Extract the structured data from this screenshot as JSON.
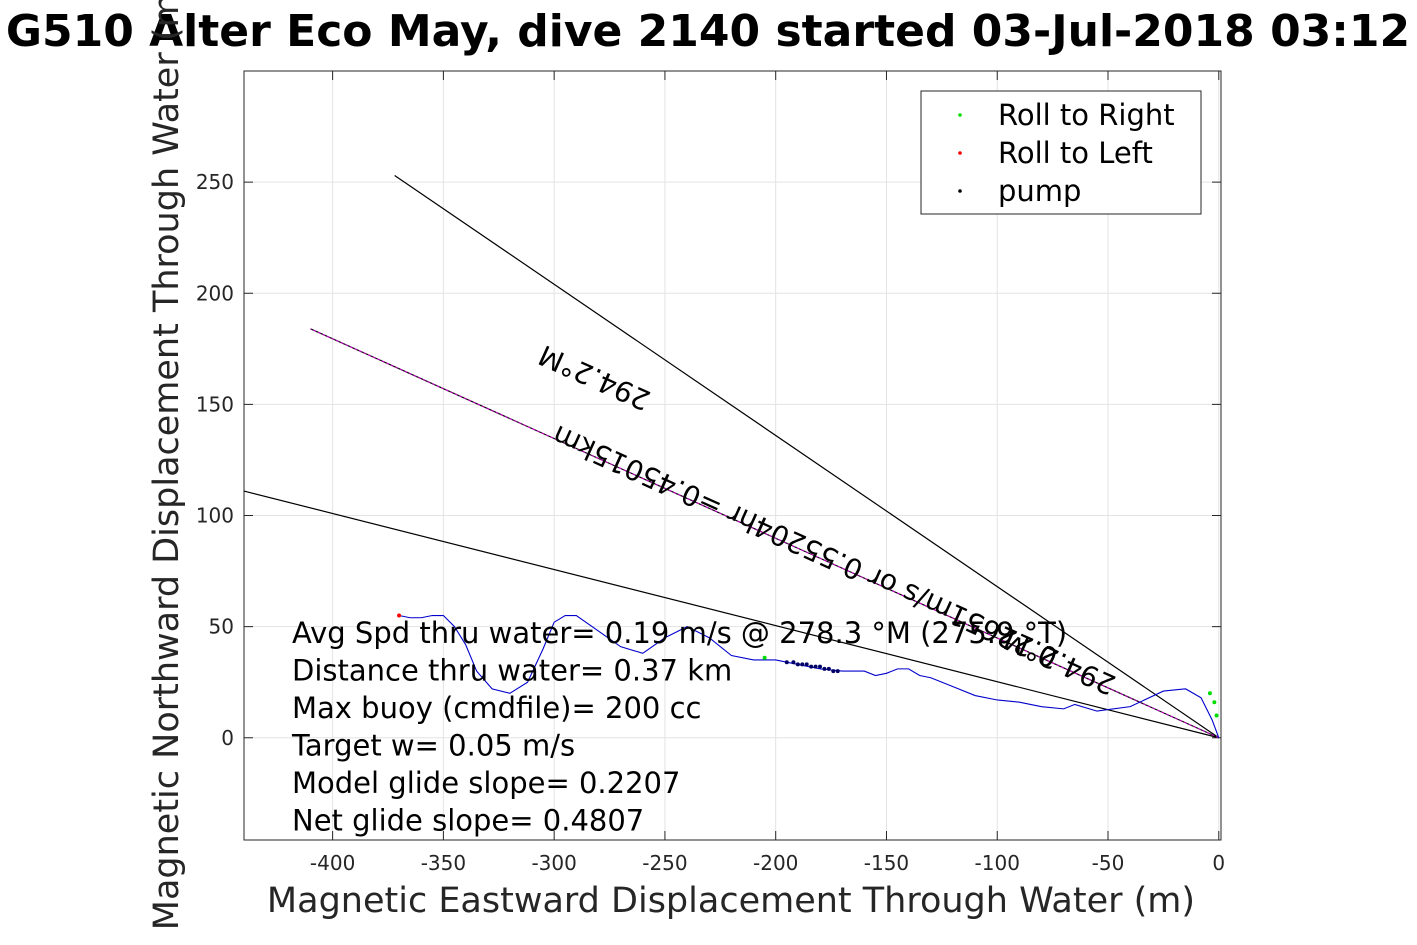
{
  "chart_data": {
    "type": "line",
    "title": "G510 Alter Eco May, dive 2140 started 03-Jul-2018 03:12",
    "xlabel": "Magnetic Eastward Displacement Through Water (m)",
    "ylabel": "Magnetic Northward Displacement Through Water (m)",
    "xlim": [
      -440,
      1
    ],
    "ylim": [
      -46,
      300
    ],
    "xticks": [
      -400,
      -350,
      -300,
      -250,
      -200,
      -150,
      -100,
      -50,
      0
    ],
    "yticks": [
      0,
      50,
      100,
      150,
      200,
      250
    ],
    "grid": true,
    "legend_position": "top-right",
    "legend": [
      {
        "label": "Roll to Right",
        "color": "#00dd00"
      },
      {
        "label": "Roll to Left",
        "color": "#ff0000"
      },
      {
        "label": "pump",
        "color": "#000000"
      }
    ],
    "reference_lines": [
      {
        "name": "heading-line",
        "color": "#000000",
        "x": [
          0,
          -410
        ],
        "y": [
          0,
          184
        ],
        "label": "294.2°M"
      },
      {
        "name": "upper-bound-line",
        "color": "#000000",
        "x": [
          0,
          -372
        ],
        "y": [
          0,
          253
        ]
      },
      {
        "name": "lower-bound-line",
        "color": "#000000",
        "x": [
          0,
          -440
        ],
        "y": [
          0,
          111
        ]
      },
      {
        "name": "avg-line",
        "color": "#cc00cc",
        "x": [
          0,
          -410
        ],
        "y": [
          0,
          184
        ]
      }
    ],
    "line_annotations": [
      {
        "text": "294.2°M",
        "x": -280,
        "y": 166
      },
      {
        "text": "0.22651m/s or 0.55204hr =0.45015km",
        "x": -185,
        "y": 90
      },
      {
        "text": "294.2°M",
        "x": -70,
        "y": 38
      }
    ],
    "track": {
      "color": "#0000cc",
      "x": [
        0,
        -3,
        -8,
        -15,
        -25,
        -40,
        -55,
        -65,
        -70,
        -80,
        -90,
        -100,
        -110,
        -120,
        -130,
        -135,
        -140,
        -145,
        -150,
        -155,
        -160,
        -170,
        -180,
        -190,
        -200,
        -210,
        -220,
        -230,
        -240,
        -250,
        -260,
        -270,
        -280,
        -290,
        -295,
        -300,
        -305,
        -312,
        -320,
        -328,
        -335,
        -340,
        -345,
        -350,
        -355,
        -360,
        -365,
        -370
      ],
      "y": [
        0,
        8,
        18,
        22,
        21,
        14,
        12,
        15,
        13,
        14,
        16,
        17,
        19,
        23,
        27,
        28,
        31,
        31,
        29,
        28,
        30,
        30,
        31,
        33,
        35,
        35,
        37,
        45,
        50,
        45,
        38,
        41,
        48,
        55,
        55,
        52,
        40,
        25,
        20,
        22,
        30,
        42,
        50,
        55,
        55,
        54,
        54,
        55
      ]
    },
    "roll_right_points": {
      "x": [
        -2,
        -4,
        -1,
        -205
      ],
      "y": [
        16,
        20,
        10,
        36
      ]
    },
    "roll_left_points": {
      "x": [
        -370
      ],
      "y": [
        55
      ]
    },
    "pump_points": {
      "x": [
        -195,
        -192,
        -190,
        -188,
        -186,
        -184,
        -182,
        -180,
        -178,
        -176,
        -174,
        -172
      ],
      "y": [
        34,
        34,
        33,
        33,
        33,
        32,
        32,
        32,
        31,
        31,
        30,
        30
      ]
    },
    "stats_text": [
      "Avg Spd thru water=  0.19 m/s @ 278.3 °M (275.9 °T)",
      "Distance thru water=  0.37 km",
      "Max buoy (cmdfile)= 200 cc",
      "Target w= 0.05 m/s",
      "Model glide slope= 0.2207",
      "Net glide slope= 0.4807"
    ]
  }
}
